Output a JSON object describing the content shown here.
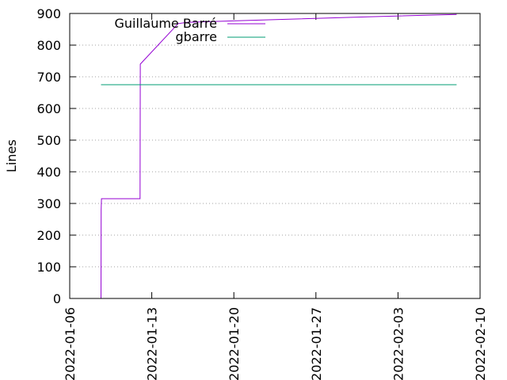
{
  "chart_data": {
    "type": "line",
    "title": "",
    "xlabel": "",
    "ylabel": "Lines",
    "xlim": [
      "2022-01-06",
      "2022-02-10"
    ],
    "ylim": [
      0,
      900
    ],
    "xticks": [
      "2022-01-06",
      "2022-01-13",
      "2022-01-20",
      "2022-01-27",
      "2022-02-03",
      "2022-02-10"
    ],
    "yticks": [
      0,
      100,
      200,
      300,
      400,
      500,
      600,
      700,
      800,
      900
    ],
    "grid": "horizontal-dotted",
    "legend": "top-left",
    "series": [
      {
        "name": "Guillaume Barré",
        "color": "#9400d3",
        "points": [
          [
            "2022-01-08T16:00",
            0
          ],
          [
            "2022-01-08T16:20",
            280
          ],
          [
            "2022-01-08T17:00",
            315
          ],
          [
            "2022-01-12T00:00",
            315
          ],
          [
            "2022-01-12T00:30",
            740
          ],
          [
            "2022-01-15T06:00",
            868
          ],
          [
            "2022-01-16T00:00",
            872
          ],
          [
            "2022-01-23T00:00",
            880
          ],
          [
            "2022-02-01T00:00",
            890
          ],
          [
            "2022-02-08T00:00",
            897
          ]
        ]
      },
      {
        "name": "gbarre",
        "color": "#009e73",
        "points": [
          [
            "2022-01-08T16:00",
            675
          ],
          [
            "2022-02-08T00:00",
            675
          ]
        ]
      }
    ]
  }
}
